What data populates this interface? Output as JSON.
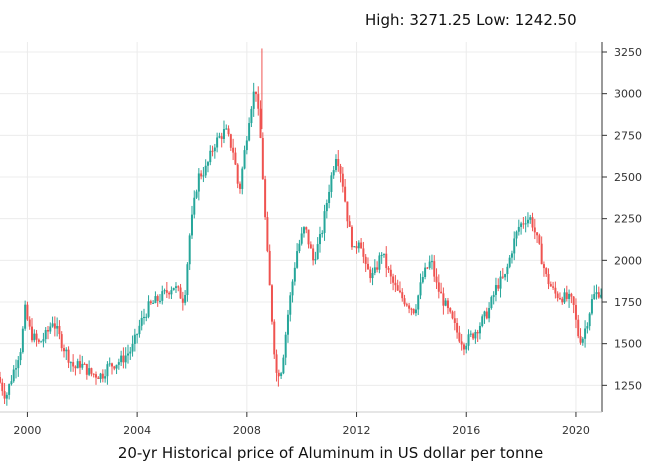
{
  "header": {
    "high_label": "High:",
    "high_value": "3271.25",
    "low_label": "Low:",
    "low_value": "1242.50"
  },
  "caption": "20-yr Historical price of Aluminum in US dollar per tonne",
  "colors": {
    "up": "#26a69a",
    "down": "#ef5350",
    "grid": "#ececec",
    "axis": "#333333"
  },
  "chart_data": {
    "type": "candlestick",
    "x_ticks": [
      "2000",
      "2004",
      "2008",
      "2012",
      "2016",
      "2020"
    ],
    "y_ticks": [
      1250,
      1500,
      1750,
      2000,
      2250,
      2500,
      2750,
      3000,
      3250
    ],
    "xlim": [
      1999.0,
      2020.95
    ],
    "ylim": [
      1090,
      3310
    ],
    "y_axis_side": "right",
    "grid": true,
    "high": 3271.25,
    "low": 1242.5,
    "anchors": [
      [
        1999.0,
        1300
      ],
      [
        1999.3,
        1180
      ],
      [
        1999.6,
        1350
      ],
      [
        1999.85,
        1480
      ],
      [
        2000.0,
        1700
      ],
      [
        2000.2,
        1560
      ],
      [
        2000.5,
        1500
      ],
      [
        2000.8,
        1560
      ],
      [
        2001.0,
        1640
      ],
      [
        2001.4,
        1480
      ],
      [
        2001.8,
        1350
      ],
      [
        2002.0,
        1380
      ],
      [
        2002.4,
        1320
      ],
      [
        2002.8,
        1310
      ],
      [
        2003.0,
        1360
      ],
      [
        2003.5,
        1400
      ],
      [
        2003.9,
        1470
      ],
      [
        2004.2,
        1620
      ],
      [
        2004.5,
        1720
      ],
      [
        2004.8,
        1760
      ],
      [
        2005.1,
        1800
      ],
      [
        2005.4,
        1850
      ],
      [
        2005.8,
        1760
      ],
      [
        2006.0,
        2150
      ],
      [
        2006.3,
        2500
      ],
      [
        2006.6,
        2550
      ],
      [
        2006.9,
        2700
      ],
      [
        2007.3,
        2780
      ],
      [
        2007.6,
        2650
      ],
      [
        2007.8,
        2400
      ],
      [
        2008.0,
        2650
      ],
      [
        2008.2,
        2900
      ],
      [
        2008.4,
        3050
      ],
      [
        2008.6,
        2700
      ],
      [
        2008.8,
        2100
      ],
      [
        2009.0,
        1650
      ],
      [
        2009.15,
        1320
      ],
      [
        2009.35,
        1350
      ],
      [
        2009.6,
        1700
      ],
      [
        2009.9,
        2050
      ],
      [
        2010.2,
        2200
      ],
      [
        2010.5,
        2000
      ],
      [
        2010.8,
        2150
      ],
      [
        2011.1,
        2450
      ],
      [
        2011.35,
        2650
      ],
      [
        2011.55,
        2500
      ],
      [
        2011.8,
        2200
      ],
      [
        2012.0,
        2050
      ],
      [
        2012.2,
        2150
      ],
      [
        2012.4,
        1950
      ],
      [
        2012.7,
        1900
      ],
      [
        2013.0,
        2050
      ],
      [
        2013.3,
        1900
      ],
      [
        2013.6,
        1800
      ],
      [
        2013.9,
        1750
      ],
      [
        2014.2,
        1700
      ],
      [
        2014.5,
        1900
      ],
      [
        2014.8,
        2000
      ],
      [
        2015.0,
        1850
      ],
      [
        2015.4,
        1700
      ],
      [
        2015.8,
        1550
      ],
      [
        2016.0,
        1500
      ],
      [
        2016.3,
        1550
      ],
      [
        2016.6,
        1620
      ],
      [
        2016.9,
        1700
      ],
      [
        2017.2,
        1850
      ],
      [
        2017.5,
        1900
      ],
      [
        2017.8,
        2100
      ],
      [
        2018.0,
        2200
      ],
      [
        2018.25,
        2250
      ],
      [
        2018.45,
        2250
      ],
      [
        2018.7,
        2100
      ],
      [
        2019.0,
        1900
      ],
      [
        2019.3,
        1800
      ],
      [
        2019.6,
        1780
      ],
      [
        2019.9,
        1760
      ],
      [
        2020.0,
        1720
      ],
      [
        2020.15,
        1560
      ],
      [
        2020.3,
        1520
      ],
      [
        2020.5,
        1640
      ],
      [
        2020.7,
        1780
      ],
      [
        2020.9,
        1810
      ]
    ]
  }
}
